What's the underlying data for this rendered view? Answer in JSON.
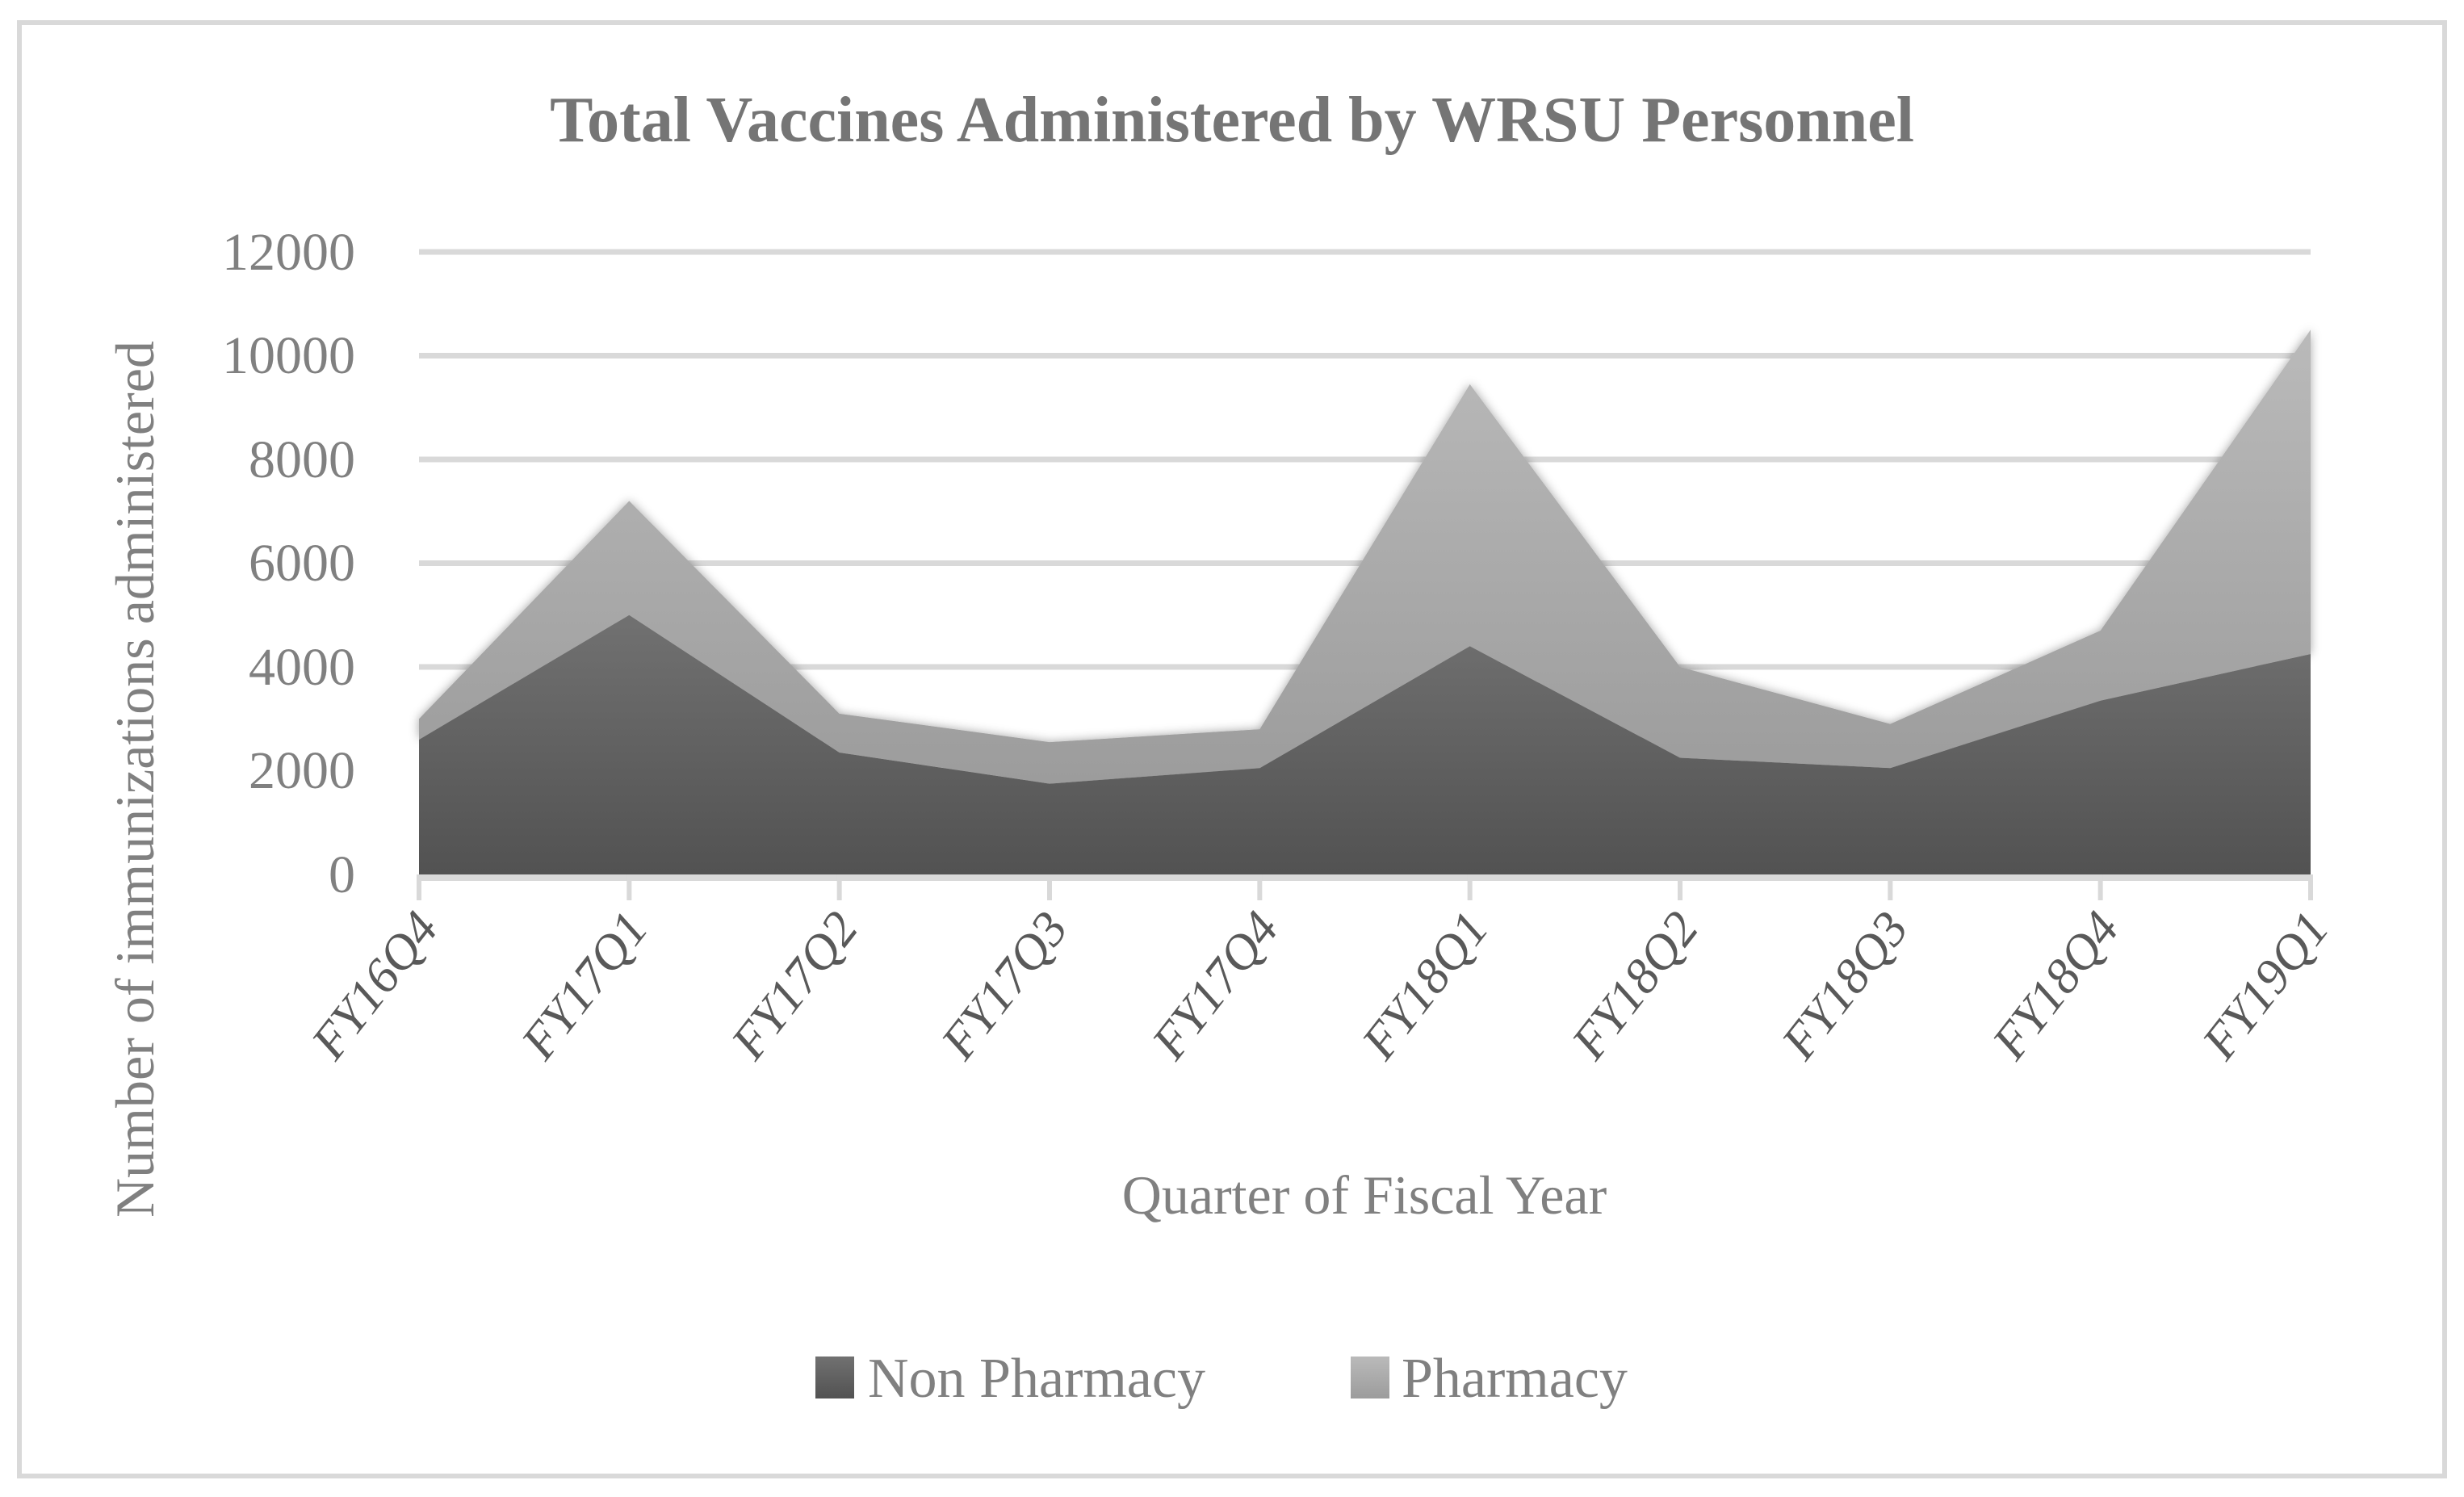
{
  "title": "Total Vaccines Administered by WRSU Personnel",
  "x_axis_title": "Quarter of Fiscal Year",
  "y_axis_title": "Number of immunizations administered",
  "y_ticks": [
    "0",
    "2000",
    "4000",
    "6000",
    "8000",
    "10000",
    "12000"
  ],
  "x_ticks": [
    "FY16Q4",
    "FY17Q1",
    "FY17Q2",
    "FY17Q3",
    "FY17Q4",
    "FY18Q1",
    "FY18Q2",
    "FY18Q3",
    "FY18Q4",
    "FY19Q1"
  ],
  "legend": [
    {
      "label": "Non Pharmacy",
      "color": "#5a5a5a"
    },
    {
      "label": "Pharmacy",
      "color": "#b0b0b0"
    }
  ],
  "colors": {
    "non_pharmacy_top": "#6e6e6e",
    "non_pharmacy_bottom": "#525252",
    "pharmacy_top": "#b8b8b8",
    "pharmacy_bottom": "#9e9e9e",
    "gridline": "#d9d9d9",
    "text": "#808080"
  },
  "chart_data": {
    "type": "area",
    "stacked": true,
    "title": "Total Vaccines Administered by WRSU Personnel",
    "xlabel": "Quarter of Fiscal Year",
    "ylabel": "Number of immunizations administered",
    "categories": [
      "FY16Q4",
      "FY17Q1",
      "FY17Q2",
      "FY17Q3",
      "FY17Q4",
      "FY18Q1",
      "FY18Q2",
      "FY18Q3",
      "FY18Q4",
      "FY19Q1"
    ],
    "series": [
      {
        "name": "Non Pharmacy",
        "values": [
          2600,
          5000,
          2350,
          1750,
          2050,
          4400,
          2250,
          2050,
          3350,
          4250
        ]
      },
      {
        "name": "Pharmacy",
        "values": [
          400,
          2200,
          750,
          800,
          750,
          5050,
          1750,
          850,
          1350,
          6250
        ]
      }
    ],
    "stacked_totals": [
      3000,
      7200,
      3100,
      2550,
      2800,
      9450,
      4000,
      2900,
      4700,
      10500
    ],
    "ylim": [
      0,
      12000
    ],
    "y_tick_step": 2000,
    "grid": true,
    "legend_position": "bottom"
  }
}
